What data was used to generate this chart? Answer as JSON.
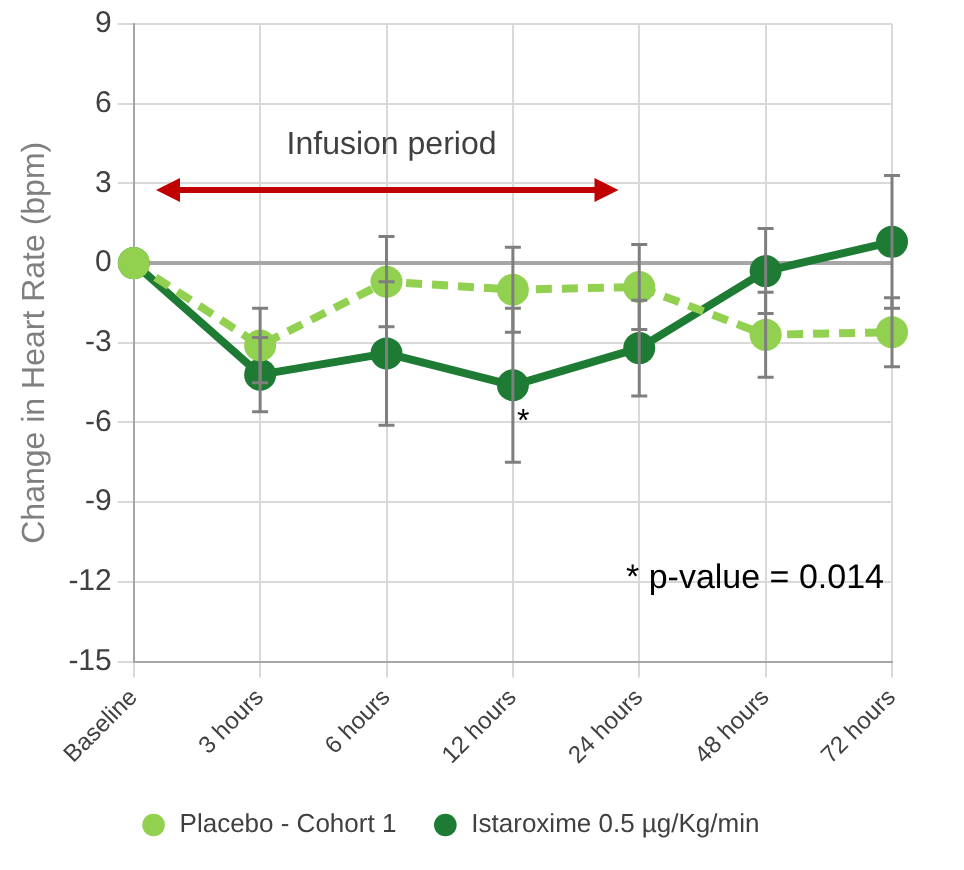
{
  "chart_data": {
    "type": "line",
    "ylabel": "Change in Heart Rate (bpm)",
    "categories": [
      "Baseline",
      "3 hours",
      "6 hours",
      "12 hours",
      "24 hours",
      "48 hours",
      "72 hours"
    ],
    "series": [
      {
        "name": "Placebo - Cohort 1",
        "color": "#92d050",
        "line_style": "dashed",
        "values": [
          0,
          -3.1,
          -0.7,
          -1.0,
          -0.9,
          -2.7,
          -2.6
        ],
        "errors": [
          null,
          1.4,
          1.7,
          1.6,
          1.6,
          1.6,
          1.3
        ]
      },
      {
        "name": "Istaroxime 0.5 µg/Kg/min",
        "color": "#1e7b34",
        "line_style": "solid",
        "values": [
          0,
          -4.2,
          -3.4,
          -4.6,
          -3.2,
          -0.3,
          0.8
        ],
        "errors": [
          null,
          1.4,
          2.7,
          2.9,
          1.8,
          1.6,
          2.5
        ]
      }
    ],
    "ylim": [
      -15,
      9
    ],
    "yticks": [
      -15,
      -12,
      -9,
      -6,
      -3,
      0,
      3,
      6,
      9
    ],
    "grid": true,
    "marker": "circle",
    "legend": "bottom",
    "annotations": [
      "Infusion period",
      {
        "text": "*",
        "x": "12 hours",
        "y": -6
      },
      "* p-value = 0.014"
    ]
  }
}
